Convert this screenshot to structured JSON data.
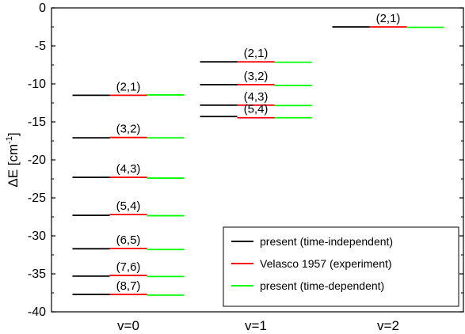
{
  "chart_data": {
    "type": "line",
    "ylabel_main": "ΔE [cm",
    "ylabel_sup": "-1",
    "ylabel_end": "]",
    "ylim": [
      -40,
      0
    ],
    "yticks": [
      0,
      -5,
      -10,
      -15,
      -20,
      -25,
      -30,
      -35,
      -40
    ],
    "categories": [
      "v=0",
      "v=1",
      "v=2"
    ],
    "levels": [
      {
        "cat": 0,
        "label": "(2,1)",
        "theory": -11.5,
        "experiment": -11.5,
        "td": -11.45
      },
      {
        "cat": 0,
        "label": "(3,2)",
        "theory": -17.1,
        "experiment": -17.05,
        "td": -17.1
      },
      {
        "cat": 0,
        "label": "(4,3)",
        "theory": -22.3,
        "experiment": -22.3,
        "td": -22.4
      },
      {
        "cat": 0,
        "label": "(5,4)",
        "theory": -27.3,
        "experiment": -27.2,
        "td": -27.35
      },
      {
        "cat": 0,
        "label": "(6,5)",
        "theory": -31.7,
        "experiment": -31.65,
        "td": -31.8
      },
      {
        "cat": 0,
        "label": "(7,6)",
        "theory": -35.3,
        "experiment": -35.2,
        "td": -35.35
      },
      {
        "cat": 0,
        "label": "(8,7)",
        "theory": -37.7,
        "experiment": -37.7,
        "td": -37.8
      },
      {
        "cat": 1,
        "label": "(2,1)",
        "theory": -7.1,
        "experiment": -7.1,
        "td": -7.15
      },
      {
        "cat": 1,
        "label": "(3,2)",
        "theory": -10.1,
        "experiment": -10.1,
        "td": -10.2
      },
      {
        "cat": 1,
        "label": "(4,3)",
        "theory": -12.8,
        "experiment": -12.8,
        "td": -12.85
      },
      {
        "cat": 1,
        "label": "(5,4)",
        "theory": -14.3,
        "experiment": -14.45,
        "td": -14.45
      },
      {
        "cat": 2,
        "label": "(2,1)",
        "theory": -2.5,
        "experiment": -2.5,
        "td": -2.55
      }
    ],
    "series": [
      {
        "name": "present (time-independent)",
        "color": "#000000",
        "key": "theory"
      },
      {
        "name": "Velasco 1957 (experiment)",
        "color": "#ff0000",
        "key": "experiment"
      },
      {
        "name": "present (time-dependent)",
        "color": "#00ff00",
        "key": "td"
      }
    ],
    "legend_position": "bottom-right",
    "grid": false
  }
}
